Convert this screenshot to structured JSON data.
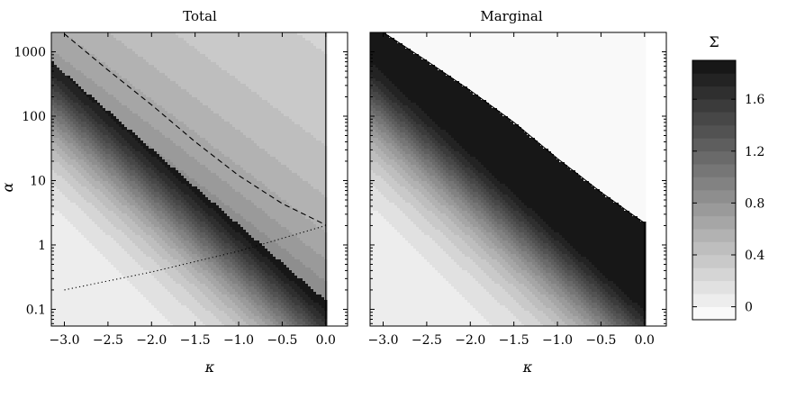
{
  "chart_data": [
    {
      "type": "heatmap",
      "title": "Total",
      "xlabel": "κ",
      "ylabel": "α",
      "xlim": [
        -3.15,
        0.25
      ],
      "ylim": [
        0.055,
        2000
      ],
      "yscale": "log",
      "xticks": [
        "−3.0",
        "−2.5",
        "−2.0",
        "−1.5",
        "−1.0",
        "−0.5",
        "0.0"
      ],
      "yticks": [
        "0.1",
        "1",
        "10",
        "100",
        "1000"
      ],
      "filled_contours": true,
      "overlays": [
        {
          "style": "dashed",
          "points": [
            [
              -3.0,
              1900
            ],
            [
              -2.5,
              520
            ],
            [
              -2.0,
              150
            ],
            [
              -1.5,
              40
            ],
            [
              -1.0,
              12
            ],
            [
              -0.5,
              4.4
            ],
            [
              0.0,
              2.05
            ]
          ]
        },
        {
          "style": "dotted",
          "points": [
            [
              -3.0,
              0.2
            ],
            [
              -2.0,
              0.38
            ],
            [
              -1.0,
              0.8
            ],
            [
              0.0,
              2.0
            ]
          ]
        },
        {
          "style": "solid",
          "points": [
            [
              0.0,
              0.055
            ],
            [
              0.0,
              2000
            ]
          ]
        }
      ]
    },
    {
      "type": "heatmap",
      "title": "Marginal",
      "xlabel": "κ",
      "ylabel": "",
      "xlim": [
        -3.15,
        0.25
      ],
      "ylim": [
        0.055,
        2000
      ],
      "yscale": "log",
      "xticks": [
        "−3.0",
        "−2.5",
        "−2.0",
        "−1.5",
        "−1.0",
        "−0.5",
        "0.0"
      ],
      "yticks": [],
      "filled_contours": true,
      "overlays": [
        {
          "style": "solid",
          "points": [
            [
              -3.0,
              2000
            ],
            [
              -2.5,
              720
            ],
            [
              -2.0,
              250
            ],
            [
              -1.5,
              80
            ],
            [
              -1.0,
              22
            ],
            [
              -0.5,
              6.6
            ],
            [
              -0.1,
              2.7
            ],
            [
              0.0,
              2.2
            ],
            [
              0.0,
              0.055
            ]
          ]
        }
      ]
    }
  ],
  "colorbar": {
    "label": "Σ",
    "range": [
      -0.1,
      1.9
    ],
    "ticks": [
      "0",
      "0.4",
      "0.8",
      "1.2",
      "1.6"
    ],
    "tick_values": [
      0,
      0.4,
      0.8,
      1.2,
      1.6
    ],
    "levels": 20,
    "colors": {
      "low": "#ffffff",
      "high": "#111111"
    }
  }
}
